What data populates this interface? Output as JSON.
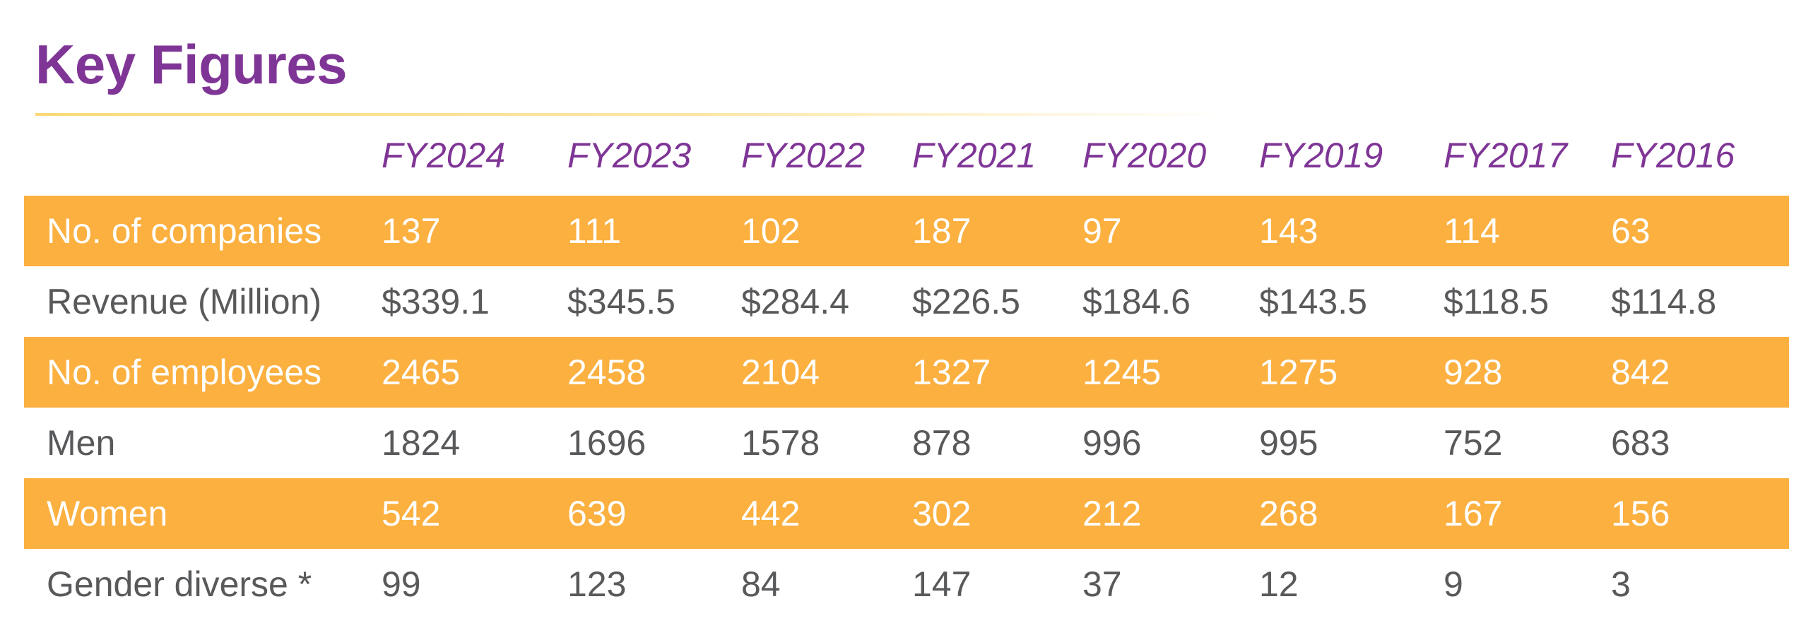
{
  "title": "Key Figures",
  "columns": [
    "FY2024",
    "FY2023",
    "FY2022",
    "FY2021",
    "FY2020",
    "FY2019",
    "FY2017",
    "FY2016"
  ],
  "rows": [
    {
      "label": "No. of companies",
      "values": [
        "137",
        "111",
        "102",
        "187",
        "97",
        "143",
        "114",
        "63"
      ]
    },
    {
      "label": "Revenue (Million)",
      "values": [
        "$339.1",
        "$345.5",
        "$284.4",
        "$226.5",
        "$184.6",
        "$143.5",
        "$118.5",
        "$114.8"
      ]
    },
    {
      "label": "No. of employees",
      "values": [
        "2465",
        "2458",
        "2104",
        "1327",
        "1245",
        "1275",
        "928",
        "842"
      ]
    },
    {
      "label": "Men",
      "values": [
        "1824",
        "1696",
        "1578",
        "878",
        "996",
        "995",
        "752",
        "683"
      ]
    },
    {
      "label": "Women",
      "values": [
        "542",
        "639",
        "442",
        "302",
        "212",
        "268",
        "167",
        "156"
      ]
    },
    {
      "label": "Gender diverse *",
      "values": [
        "99",
        "123",
        "84",
        "147",
        "37",
        "12",
        "9",
        "3"
      ]
    }
  ],
  "colors": {
    "title": "#7f3596",
    "band": "#fbb040",
    "text": "#58595b"
  }
}
